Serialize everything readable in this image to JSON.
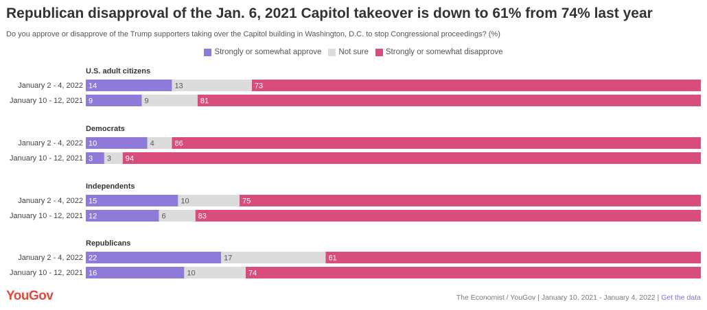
{
  "header": {
    "title": "Republican disapproval of the Jan. 6, 2021 Capitol takeover is down to 61% from 74% last year",
    "subtitle": "Do you approve or disapprove of the Trump supporters taking over the Capitol building in Washington, D.C. to stop Congressional proceedings? (%)"
  },
  "colors": {
    "approve": "#8f7ad9",
    "not_sure": "#dcdcdc",
    "disapprove": "#d94c7e",
    "brand": "#e4473d"
  },
  "chart_data": {
    "type": "bar",
    "orientation": "horizontal",
    "stacked": true,
    "xlim": [
      0,
      100
    ],
    "legend_position": "top-center",
    "grid": false,
    "series": [
      {
        "name": "Strongly or somewhat approve",
        "color": "#8f7ad9"
      },
      {
        "name": "Not sure",
        "color": "#dcdcdc"
      },
      {
        "name": "Strongly or somewhat disapprove",
        "color": "#d94c7e"
      }
    ],
    "groups": [
      {
        "name": "U.S. adult citizens",
        "rows": [
          {
            "label": "January 2 - 4, 2022",
            "values": [
              14,
              13,
              73
            ]
          },
          {
            "label": "January 10 - 12, 2021",
            "values": [
              9,
              9,
              81
            ]
          }
        ]
      },
      {
        "name": "Democrats",
        "rows": [
          {
            "label": "January 2 - 4, 2022",
            "values": [
              10,
              4,
              86
            ]
          },
          {
            "label": "January 10 - 12, 2021",
            "values": [
              3,
              3,
              94
            ]
          }
        ]
      },
      {
        "name": "Independents",
        "rows": [
          {
            "label": "January 2 - 4, 2022",
            "values": [
              15,
              10,
              75
            ]
          },
          {
            "label": "January 10 - 12, 2021",
            "values": [
              12,
              6,
              83
            ]
          }
        ]
      },
      {
        "name": "Republicans",
        "rows": [
          {
            "label": "January 2 - 4, 2022",
            "values": [
              22,
              17,
              61
            ]
          },
          {
            "label": "January 10 - 12, 2021",
            "values": [
              16,
              10,
              74
            ]
          }
        ]
      }
    ]
  },
  "footer": {
    "logo": "YouGov",
    "source": "The Economist / YouGov | January 10, 2021 - January 4, 2022 | ",
    "link": "Get the data"
  }
}
